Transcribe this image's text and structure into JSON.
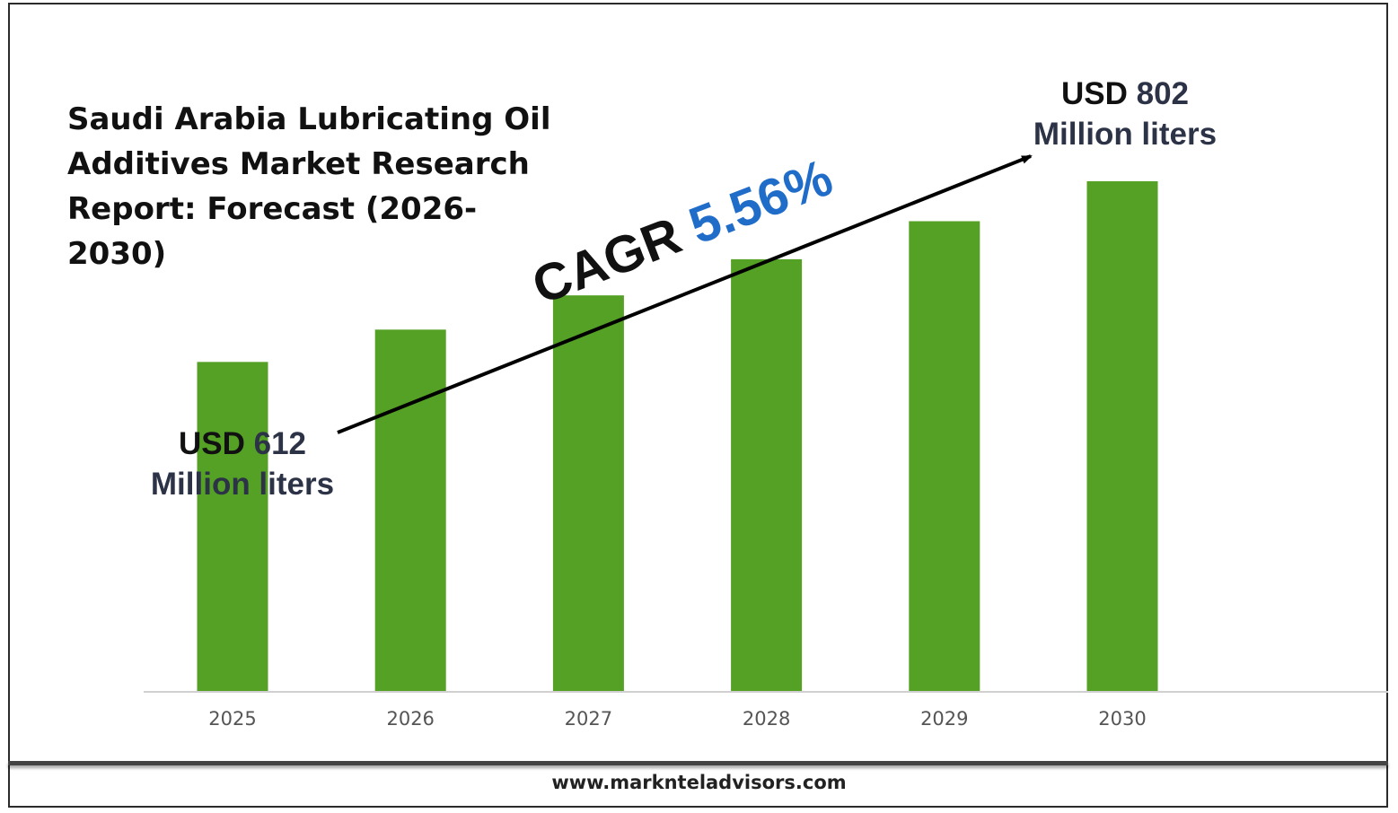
{
  "chart_data": {
    "type": "bar",
    "title": "Saudi Arabia Lubricating Oil Additives Market Research Report: Forecast (2026-2030)",
    "categories": [
      "2025",
      "2026",
      "2027",
      "2028",
      "2029",
      "2030"
    ],
    "values": [
      612,
      646,
      682,
      720,
      760,
      802
    ],
    "ylim": [
      266,
      802
    ],
    "bar_color": "#55a125",
    "grid": false,
    "legend": "none",
    "annotations": {
      "start_prefix": "USD",
      "start_value": "612",
      "start_unit": "Million liters",
      "end_prefix": "USD",
      "end_value": "802",
      "end_unit": "Million liters",
      "cagr_label": "CAGR",
      "cagr_value": "5.56%"
    },
    "accent_color": "#1f6cc9"
  },
  "footer": {
    "website": "www.marknteladvisors.com"
  }
}
